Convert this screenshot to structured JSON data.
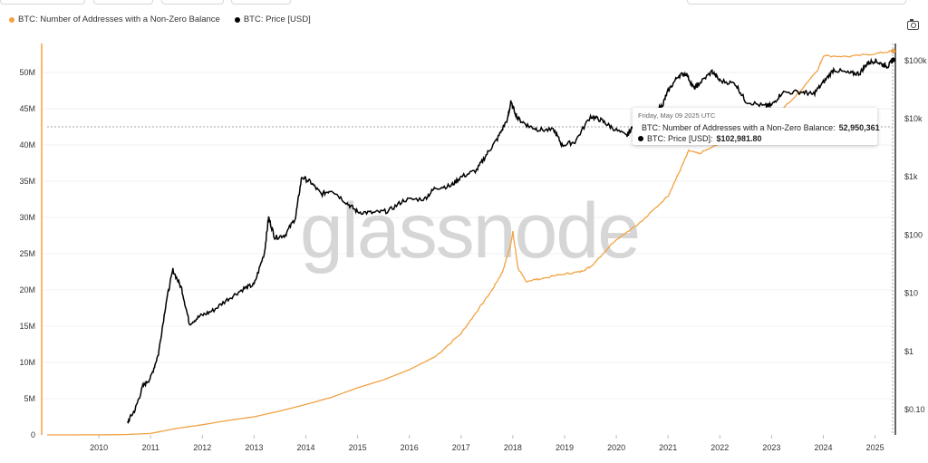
{
  "legend": {
    "series_addresses": "BTC: Number of Addresses with a Non-Zero Balance",
    "series_price": "BTC: Price [USD]"
  },
  "watermark": "glassnode",
  "tooltip": {
    "date": "Friday, May 09 2025 UTC",
    "addresses_label": "BTC: Number of Addresses with a Non-Zero Balance:",
    "addresses_value": "52,950,361",
    "price_label": "BTC: Price [USD]:",
    "price_value": "$102,981.80"
  },
  "colors": {
    "addresses": "#f2a241",
    "price": "#000000",
    "axis_left": "#f2a241",
    "grid": "#eeeeee"
  },
  "chart_data": {
    "type": "line",
    "title": "",
    "x": {
      "tick_labels": [
        "2010",
        "2011",
        "2012",
        "2013",
        "2014",
        "2015",
        "2016",
        "2017",
        "2018",
        "2019",
        "2020",
        "2021",
        "2022",
        "2023",
        "2024",
        "2025"
      ],
      "range": [
        2009.0,
        2025.4
      ]
    },
    "y_left": {
      "label": "",
      "tick_labels": [
        "0",
        "5M",
        "10M",
        "15M",
        "20M",
        "25M",
        "30M",
        "35M",
        "40M",
        "45M",
        "50M"
      ],
      "range_millions": [
        0,
        52
      ]
    },
    "y_right": {
      "label": "",
      "scale": "log",
      "tick_labels": [
        "$0.10",
        "$1",
        "$10",
        "$100",
        "$1k",
        "$10k",
        "$100k"
      ],
      "tick_values": [
        0.1,
        1,
        10,
        100,
        1000,
        10000,
        100000
      ],
      "range": [
        0.03,
        200000
      ]
    },
    "series": [
      {
        "name": "BTC: Number of Addresses with a Non-Zero Balance",
        "axis": "left",
        "unit": "millions",
        "points": [
          [
            2009.0,
            0
          ],
          [
            2010.0,
            0.01
          ],
          [
            2010.5,
            0.05
          ],
          [
            2011.0,
            0.2
          ],
          [
            2011.5,
            0.9
          ],
          [
            2012.0,
            1.4
          ],
          [
            2012.5,
            2.0
          ],
          [
            2013.0,
            2.5
          ],
          [
            2013.5,
            3.3
          ],
          [
            2014.0,
            4.2
          ],
          [
            2014.5,
            5.2
          ],
          [
            2015.0,
            6.5
          ],
          [
            2015.5,
            7.6
          ],
          [
            2016.0,
            9.0
          ],
          [
            2016.5,
            10.8
          ],
          [
            2017.0,
            14.0
          ],
          [
            2017.3,
            17.0
          ],
          [
            2017.6,
            20.0
          ],
          [
            2017.8,
            22.5
          ],
          [
            2017.95,
            26.0
          ],
          [
            2018.0,
            28.0
          ],
          [
            2018.1,
            23.0
          ],
          [
            2018.25,
            21.2
          ],
          [
            2018.5,
            21.5
          ],
          [
            2019.0,
            22.2
          ],
          [
            2019.3,
            22.5
          ],
          [
            2019.5,
            23.2
          ],
          [
            2020.0,
            27.0
          ],
          [
            2020.5,
            29.5
          ],
          [
            2021.0,
            33.0
          ],
          [
            2021.2,
            36.0
          ],
          [
            2021.4,
            39.2
          ],
          [
            2021.6,
            38.8
          ],
          [
            2022.0,
            40.2
          ],
          [
            2022.5,
            42.0
          ],
          [
            2023.0,
            43.5
          ],
          [
            2023.5,
            47.0
          ],
          [
            2023.9,
            50.5
          ],
          [
            2024.0,
            52.3
          ],
          [
            2024.5,
            52.2
          ],
          [
            2025.0,
            52.6
          ],
          [
            2025.35,
            52.95
          ]
        ]
      },
      {
        "name": "BTC: Price [USD]",
        "axis": "right",
        "unit": "USD",
        "points": [
          [
            2010.55,
            0.06
          ],
          [
            2010.7,
            0.1
          ],
          [
            2010.85,
            0.25
          ],
          [
            2011.0,
            0.35
          ],
          [
            2011.15,
            0.9
          ],
          [
            2011.3,
            7
          ],
          [
            2011.43,
            25
          ],
          [
            2011.6,
            12
          ],
          [
            2011.75,
            3
          ],
          [
            2011.95,
            4
          ],
          [
            2012.2,
            5
          ],
          [
            2012.5,
            8
          ],
          [
            2012.8,
            12
          ],
          [
            2013.0,
            14
          ],
          [
            2013.2,
            50
          ],
          [
            2013.28,
            200
          ],
          [
            2013.4,
            90
          ],
          [
            2013.6,
            100
          ],
          [
            2013.8,
            200
          ],
          [
            2013.92,
            1000
          ],
          [
            2014.1,
            800
          ],
          [
            2014.3,
            500
          ],
          [
            2014.5,
            600
          ],
          [
            2014.8,
            350
          ],
          [
            2015.0,
            250
          ],
          [
            2015.3,
            240
          ],
          [
            2015.6,
            260
          ],
          [
            2015.9,
            400
          ],
          [
            2016.3,
            420
          ],
          [
            2016.5,
            650
          ],
          [
            2016.8,
            700
          ],
          [
            2017.0,
            1000
          ],
          [
            2017.3,
            1300
          ],
          [
            2017.5,
            2500
          ],
          [
            2017.7,
            4500
          ],
          [
            2017.9,
            10000
          ],
          [
            2017.96,
            19000
          ],
          [
            2018.1,
            10000
          ],
          [
            2018.3,
            7500
          ],
          [
            2018.5,
            6500
          ],
          [
            2018.8,
            6300
          ],
          [
            2018.95,
            3500
          ],
          [
            2019.2,
            4000
          ],
          [
            2019.5,
            11000
          ],
          [
            2019.7,
            9500
          ],
          [
            2019.9,
            7200
          ],
          [
            2020.2,
            5000
          ],
          [
            2020.3,
            7000
          ],
          [
            2020.5,
            9500
          ],
          [
            2020.7,
            11000
          ],
          [
            2020.9,
            18000
          ],
          [
            2021.0,
            30000
          ],
          [
            2021.2,
            55000
          ],
          [
            2021.35,
            60000
          ],
          [
            2021.5,
            33000
          ],
          [
            2021.6,
            40000
          ],
          [
            2021.85,
            65000
          ],
          [
            2022.0,
            45000
          ],
          [
            2022.3,
            40000
          ],
          [
            2022.5,
            20000
          ],
          [
            2022.85,
            16500
          ],
          [
            2023.0,
            17000
          ],
          [
            2023.2,
            28000
          ],
          [
            2023.6,
            29000
          ],
          [
            2023.8,
            26000
          ],
          [
            2024.0,
            42000
          ],
          [
            2024.2,
            70000
          ],
          [
            2024.5,
            60000
          ],
          [
            2024.7,
            60000
          ],
          [
            2024.85,
            90000
          ],
          [
            2025.0,
            100000
          ],
          [
            2025.15,
            85000
          ],
          [
            2025.25,
            80000
          ],
          [
            2025.35,
            102981.8
          ]
        ]
      }
    ]
  }
}
